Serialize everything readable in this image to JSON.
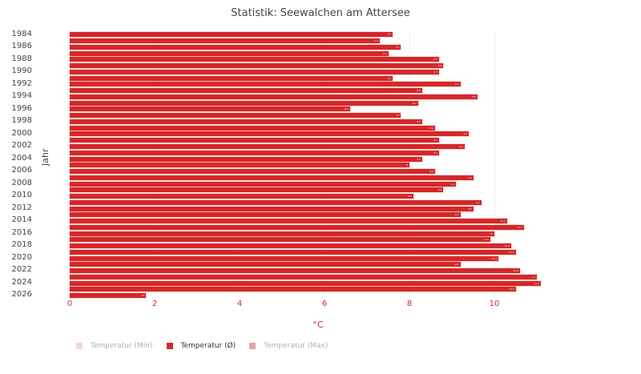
{
  "title": "Statistik: Seewalchen am Attersee",
  "colors": {
    "bar": "#d62728",
    "legend_min": "#f5d3d3",
    "legend_avg": "#d62728",
    "legend_max": "#eea2a4",
    "axis_text": "#d62728",
    "grid": "#efefef"
  },
  "legend": [
    {
      "label": "Temperatur (Min)",
      "active": false,
      "color": "#f5d3d3"
    },
    {
      "label": "Temperatur (Ø)",
      "active": true,
      "color": "#d62728"
    },
    {
      "label": "Temperatur (Max)",
      "active": false,
      "color": "#eea2a4"
    }
  ],
  "chart_data": {
    "type": "bar",
    "orientation": "horizontal",
    "title": "Statistik: Seewalchen am Attersee",
    "xlabel": "°C",
    "ylabel": "Jahr",
    "xlim": [
      0,
      13.2
    ],
    "xticks": [
      "0",
      "2",
      "4",
      "6",
      "8",
      "10"
    ],
    "yticks": [
      "1984",
      "1986",
      "1988",
      "1990",
      "1992",
      "1994",
      "1996",
      "1998",
      "2000",
      "2002",
      "2004",
      "2006",
      "2008",
      "2010",
      "2012",
      "2014",
      "2016",
      "2018",
      "2020",
      "2022",
      "2024",
      "2026"
    ],
    "grid": true,
    "legend_position": "bottom-left",
    "categories": [
      "1984",
      "1985",
      "1986",
      "1987",
      "1988",
      "1989",
      "1990",
      "1991",
      "1992",
      "1993",
      "1994",
      "1995",
      "1996",
      "1997",
      "1998",
      "1999",
      "2000",
      "2001",
      "2002",
      "2003",
      "2004",
      "2005",
      "2006",
      "2007",
      "2008",
      "2009",
      "2010",
      "2011",
      "2012",
      "2013",
      "2014",
      "2015",
      "2016",
      "2017",
      "2018",
      "2019",
      "2020",
      "2021",
      "2022",
      "2023",
      "2024",
      "2025",
      "2026"
    ],
    "series": [
      {
        "name": "Temperatur (Ø)",
        "values": [
          7.6,
          7.3,
          7.8,
          7.5,
          8.7,
          8.8,
          8.7,
          7.6,
          9.2,
          8.3,
          9.6,
          8.2,
          6.6,
          7.8,
          8.3,
          8.6,
          9.4,
          8.7,
          9.3,
          8.7,
          8.3,
          8.0,
          8.6,
          9.5,
          9.1,
          8.8,
          8.1,
          9.7,
          9.5,
          9.2,
          10.3,
          10.7,
          10.0,
          9.9,
          10.4,
          10.5,
          10.1,
          9.2,
          10.6,
          11.0,
          11.1,
          10.5,
          1.8
        ]
      }
    ]
  }
}
